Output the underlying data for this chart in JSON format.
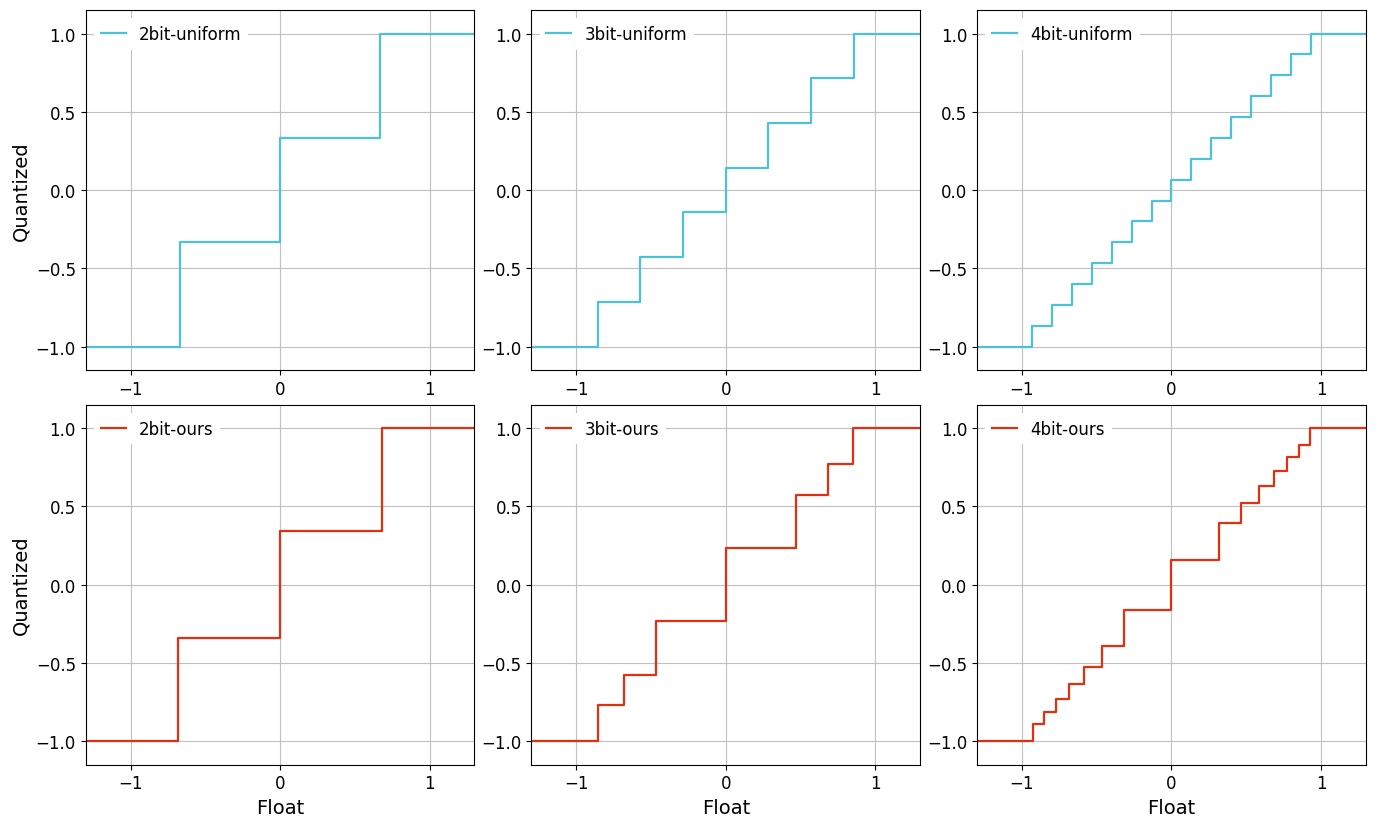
{
  "uniform_color": "#4dc0dc",
  "ours_color": "#e03010",
  "xlim": [
    -1.3,
    1.3
  ],
  "ylim": [
    -1.15,
    1.15
  ],
  "xlabel": "Float",
  "ylabel": "Quantized",
  "grid_color": "#c0c0c0",
  "line_width": 1.6,
  "background_color": "#ffffff",
  "titles_top": [
    "2bit-uniform",
    "3bit-uniform",
    "4bit-uniform"
  ],
  "titles_bottom": [
    "2bit-ours",
    "3bit-ours",
    "4bit-ours"
  ],
  "xticks": [
    -1,
    0,
    1
  ],
  "yticks": [
    -1.0,
    -0.5,
    0.0,
    0.5,
    1.0
  ],
  "legend_fontsize": 12,
  "tick_fontsize": 12,
  "label_fontsize": 14
}
